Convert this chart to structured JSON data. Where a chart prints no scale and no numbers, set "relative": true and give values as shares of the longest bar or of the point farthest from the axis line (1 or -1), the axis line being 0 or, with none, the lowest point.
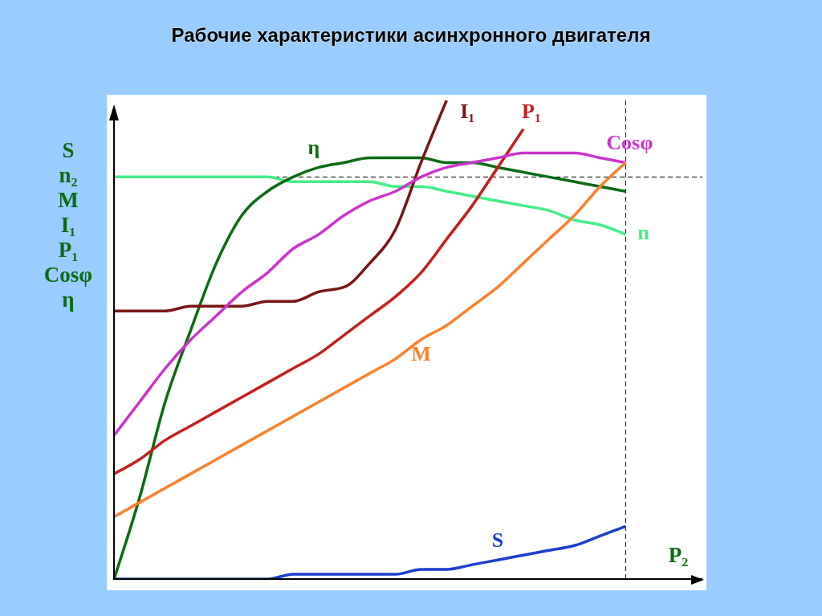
{
  "chart_data": {
    "type": "line",
    "title": "Рабочие характеристики асинхронного двигателя",
    "xlabel": "P₂",
    "ylabel": "S\nn₂\nM\nI₁\nP₁\nCosφ\nη",
    "relative": true,
    "grid": false,
    "legend": false,
    "marker": "none",
    "line_style": "solid",
    "categories": [
      null,
      null,
      null,
      null,
      null,
      null,
      null,
      null,
      null,
      null,
      null,
      null,
      null,
      null,
      null,
      null,
      null,
      null,
      null,
      null,
      null,
      null,
      null,
      null
    ],
    "series": [
      {
        "name": "n",
        "color": "#44ee88",
        "values": [
          0.84,
          0.84,
          0.84,
          0.84,
          0.84,
          0.84,
          0.84,
          0.83,
          0.83,
          0.83,
          0.83,
          0.82,
          0.82,
          0.81,
          0.8,
          0.79,
          0.78,
          0.77,
          0.75,
          0.74,
          0.72,
          null,
          null,
          null
        ]
      },
      {
        "name": "η",
        "color": "#0b6b12",
        "values": [
          0,
          0.17,
          0.37,
          0.52,
          0.66,
          0.76,
          0.81,
          0.84,
          0.86,
          0.87,
          0.88,
          0.88,
          0.88,
          0.87,
          0.87,
          0.86,
          0.85,
          0.84,
          0.83,
          0.82,
          0.81,
          null,
          null,
          null
        ]
      },
      {
        "name": "I₁",
        "color": "#7a1515",
        "values": [
          0.56,
          0.56,
          0.56,
          0.57,
          0.57,
          0.57,
          0.58,
          0.58,
          0.6,
          0.61,
          0.66,
          0.73,
          0.87,
          1,
          null,
          null,
          null,
          null,
          null,
          null,
          null,
          null,
          null,
          null
        ]
      },
      {
        "name": "P₁",
        "color": "#c81e1e",
        "values": [
          0.22,
          0.25,
          0.29,
          0.32,
          0.35,
          0.38,
          0.41,
          0.44,
          0.47,
          0.51,
          0.55,
          0.59,
          0.64,
          0.71,
          0.78,
          0.86,
          0.94,
          null,
          null,
          null,
          null,
          null,
          null,
          null
        ]
      },
      {
        "name": "Cosφ",
        "color": "#cc33cc",
        "values": [
          0.3,
          0.37,
          0.44,
          0.5,
          0.55,
          0.6,
          0.64,
          0.69,
          0.72,
          0.76,
          0.79,
          0.81,
          0.84,
          0.86,
          0.87,
          0.88,
          0.89,
          0.89,
          0.89,
          0.88,
          0.87,
          null,
          null,
          null
        ]
      },
      {
        "name": "M",
        "color": "#ff7f2a",
        "values": [
          0.13,
          0.16,
          0.19,
          0.22,
          0.25,
          0.28,
          0.31,
          0.34,
          0.37,
          0.4,
          0.43,
          0.46,
          0.5,
          0.53,
          0.57,
          0.61,
          0.66,
          0.71,
          0.76,
          0.82,
          0.87,
          null,
          null,
          null
        ]
      },
      {
        "name": "S",
        "color": "#1a3fcc",
        "values": [
          0,
          0,
          0,
          0,
          0,
          0,
          0,
          0.01,
          0.01,
          0.01,
          0.01,
          0.01,
          0.02,
          0.02,
          0.03,
          0.04,
          0.05,
          0.06,
          0.07,
          0.09,
          0.11,
          null,
          null,
          null
        ]
      }
    ],
    "ref_lines": [
      {
        "axis": "y",
        "value": 0.84,
        "color": "#000000",
        "line_style": "dashed"
      }
    ]
  }
}
